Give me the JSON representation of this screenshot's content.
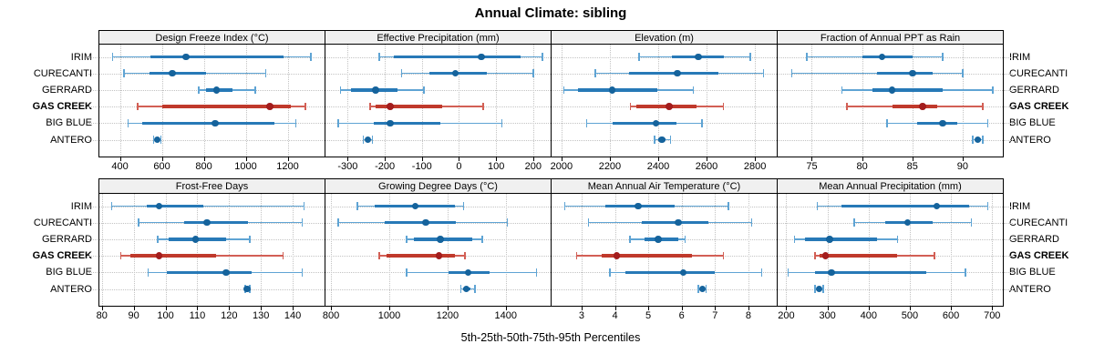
{
  "title": "Annual Climate: sibling",
  "xlabel": "5th-25th-50th-75th-95th Percentiles",
  "sites": [
    "IRIM",
    "CURECANTI",
    "GERRARD",
    "GAS CREEK",
    "BIG BLUE",
    "ANTERO"
  ],
  "highlight_site": "GAS CREEK",
  "colors": {
    "blue_line": "#5fa4d4",
    "blue_bar": "#2779b7",
    "blue_dot": "#15639c",
    "red_line": "#d25f55",
    "red_bar": "#c0392b",
    "red_dot": "#a31d1d",
    "grid": "#c3c3c3",
    "frame": "#000000",
    "strip_bg": "#f0f0f0",
    "text": "#000000"
  },
  "chart_data": {
    "type": "dotplot-percentiles",
    "percentile_labels": [
      "5th",
      "25th",
      "50th",
      "75th",
      "95th"
    ],
    "site_order_top_to_bottom": [
      "IRIM",
      "CURECANTI",
      "GERRARD",
      "GAS CREEK",
      "BIG BLUE",
      "ANTERO"
    ],
    "grid": "dotted",
    "panels": [
      {
        "label": "Design Freeze Index (°C)",
        "row": 0,
        "col": 0,
        "domain": [
          302,
          1376
        ],
        "ticks": [
          400,
          600,
          800,
          1000,
          1200
        ],
        "series": [
          [
            365,
            545,
            715,
            1180,
            1310
          ],
          [
            420,
            540,
            650,
            810,
            1095
          ],
          [
            775,
            810,
            860,
            935,
            1045
          ],
          [
            485,
            600,
            1115,
            1215,
            1285
          ],
          [
            440,
            505,
            855,
            1135,
            1240
          ],
          [
            560,
            570,
            578,
            585,
            595
          ]
        ]
      },
      {
        "label": "Effective Precipitation (mm)",
        "row": 0,
        "col": 1,
        "domain": [
          -360,
          247
        ],
        "ticks": [
          -300,
          -200,
          -100,
          0,
          100,
          200
        ],
        "series": [
          [
            -215,
            -175,
            60,
            165,
            225
          ],
          [
            -155,
            -80,
            -10,
            75,
            200
          ],
          [
            -320,
            -290,
            -225,
            -165,
            -95
          ],
          [
            -240,
            -225,
            -185,
            -45,
            65
          ],
          [
            -325,
            -230,
            -185,
            -50,
            115
          ],
          [
            -258,
            -250,
            -246,
            -241,
            -234
          ]
        ]
      },
      {
        "label": "Elevation (m)",
        "row": 0,
        "col": 2,
        "domain": [
          1959,
          2890
        ],
        "ticks": [
          2000,
          2200,
          2400,
          2600,
          2800
        ],
        "series": [
          [
            2320,
            2455,
            2565,
            2670,
            2780
          ],
          [
            2140,
            2280,
            2480,
            2650,
            2835
          ],
          [
            2010,
            2070,
            2210,
            2395,
            2545
          ],
          [
            2285,
            2310,
            2445,
            2560,
            2670
          ],
          [
            2105,
            2210,
            2390,
            2475,
            2580
          ],
          [
            2385,
            2400,
            2415,
            2430,
            2450
          ]
        ]
      },
      {
        "label": "Fraction of Annual PPT as Rain",
        "row": 0,
        "col": 3,
        "domain": [
          71.6,
          94.0
        ],
        "ticks": [
          75,
          80,
          85,
          90
        ],
        "series": [
          [
            74.5,
            80,
            82,
            85,
            88
          ],
          [
            73,
            81.5,
            85,
            87,
            90
          ],
          [
            78,
            81,
            83,
            88,
            93
          ],
          [
            78.5,
            83,
            86,
            87.5,
            92
          ],
          [
            82.5,
            85.5,
            88,
            89.5,
            92.5
          ],
          [
            91,
            91.3,
            91.5,
            91.8,
            92
          ]
        ]
      },
      {
        "label": "Frost-Free Days",
        "row": 1,
        "col": 0,
        "domain": [
          79.2,
          150
        ],
        "ticks": [
          80,
          90,
          100,
          110,
          120,
          130,
          140
        ],
        "series": [
          [
            83,
            94,
            98,
            112,
            143.5
          ],
          [
            91.5,
            106,
            113,
            126,
            143
          ],
          [
            97.5,
            101,
            109.5,
            119,
            126.5
          ],
          [
            86,
            89,
            98,
            116,
            137
          ],
          [
            94.5,
            100.5,
            119,
            127,
            143
          ],
          [
            125,
            125.4,
            125.7,
            126,
            126.5
          ]
        ]
      },
      {
        "label": "Growing Degree Days (°C)",
        "row": 1,
        "col": 1,
        "domain": [
          781,
          1554
        ],
        "ticks": [
          800,
          1000,
          1200,
          1400
        ],
        "series": [
          [
            890,
            950,
            1090,
            1225,
            1255
          ],
          [
            825,
            985,
            1125,
            1230,
            1405
          ],
          [
            1060,
            1085,
            1175,
            1285,
            1320
          ],
          [
            965,
            990,
            1170,
            1225,
            1260
          ],
          [
            1060,
            1205,
            1270,
            1345,
            1505
          ],
          [
            1245,
            1255,
            1265,
            1280,
            1295
          ]
        ]
      },
      {
        "label": "Mean Annual Air Temperature (°C)",
        "row": 1,
        "col": 2,
        "domain": [
          2.1,
          8.85
        ],
        "ticks": [
          3,
          4,
          5,
          6,
          7,
          8
        ],
        "series": [
          [
            2.5,
            3.7,
            4.7,
            5.8,
            7.4
          ],
          [
            3.2,
            4.8,
            5.9,
            6.8,
            8.1
          ],
          [
            4.45,
            4.9,
            5.3,
            5.9,
            6.1
          ],
          [
            2.85,
            3.6,
            4.05,
            6.3,
            7.25
          ],
          [
            3.85,
            4.3,
            6.05,
            7.0,
            8.4
          ],
          [
            6.5,
            6.57,
            6.62,
            6.67,
            6.73
          ]
        ]
      },
      {
        "label": "Mean Annual Precipitation (mm)",
        "row": 1,
        "col": 3,
        "domain": [
          179,
          726
        ],
        "ticks": [
          200,
          300,
          400,
          500,
          600,
          700
        ],
        "series": [
          [
            275,
            335,
            565,
            645,
            690
          ],
          [
            365,
            440,
            495,
            555,
            650
          ],
          [
            220,
            245,
            305,
            420,
            470
          ],
          [
            270,
            280,
            295,
            470,
            560
          ],
          [
            205,
            270,
            310,
            540,
            635
          ],
          [
            270,
            276,
            280,
            284,
            290
          ]
        ]
      }
    ]
  }
}
